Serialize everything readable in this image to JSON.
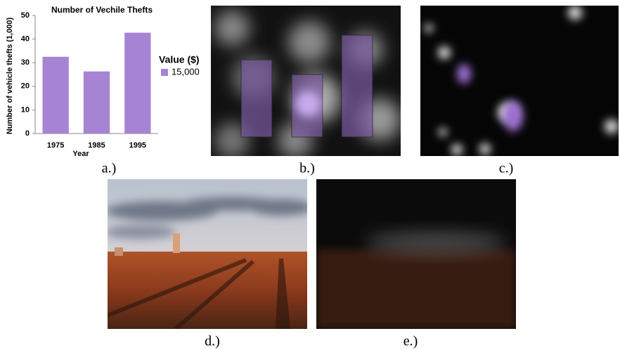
{
  "chart_data": {
    "type": "bar",
    "title": "Number of Vechile Thefts",
    "x_label": "Year",
    "y_label": "Number of vehicle thefts (1,000)",
    "categories": [
      "1975",
      "1985",
      "1995"
    ],
    "series": [
      {
        "name": "15,000",
        "color": "#a783d4",
        "values": [
          32.5,
          26.3,
          42.7
        ]
      }
    ],
    "legend_title": "Value ($)",
    "legend": "right",
    "ylim": [
      0,
      50
    ],
    "yticks": [
      0,
      10,
      20,
      30,
      40,
      50
    ],
    "grid": false
  },
  "panel_labels": [
    "a.)",
    "b.)",
    "c.)",
    "d.)",
    "e.)"
  ]
}
